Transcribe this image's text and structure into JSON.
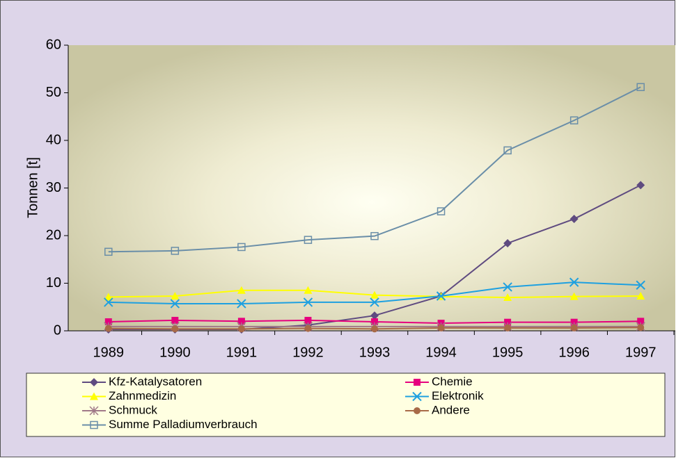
{
  "chart_data": {
    "type": "line",
    "y_label": "Tonnen [t]",
    "categories": [
      "1989",
      "1990",
      "1991",
      "1992",
      "1993",
      "1994",
      "1995",
      "1996",
      "1997"
    ],
    "series": [
      {
        "name": "Kfz-Katalysatoren",
        "color": "#5f4b80",
        "marker": "diamond",
        "values": [
          0.3,
          0.3,
          0.3,
          1.2,
          3.2,
          7.3,
          18.4,
          23.5,
          30.6
        ]
      },
      {
        "name": "Chemie",
        "color": "#e6007e",
        "marker": "square",
        "values": [
          1.9,
          2.2,
          2.0,
          2.2,
          1.9,
          1.6,
          1.8,
          1.8,
          2.0
        ]
      },
      {
        "name": "Zahnmedizin",
        "color": "#ffff00",
        "marker": "triangle",
        "values": [
          7.1,
          7.3,
          8.5,
          8.5,
          7.5,
          7.2,
          7.0,
          7.2,
          7.3
        ]
      },
      {
        "name": "Elektronik",
        "color": "#1ea0e0",
        "marker": "x",
        "values": [
          6.0,
          5.7,
          5.7,
          6.0,
          6.0,
          7.3,
          9.2,
          10.2,
          9.6
        ]
      },
      {
        "name": "Schmuck",
        "color": "#a07888",
        "marker": "asterisk",
        "values": [
          0.9,
          0.9,
          0.9,
          0.9,
          0.9,
          0.9,
          0.9,
          0.9,
          0.9
        ]
      },
      {
        "name": "Andere",
        "color": "#a86a48",
        "marker": "circle",
        "values": [
          0.5,
          0.4,
          0.4,
          0.5,
          0.4,
          0.6,
          0.6,
          0.6,
          0.7
        ]
      },
      {
        "name": "Summe Palladiumverbrauch",
        "color": "#6a8ea8",
        "marker": "open-square",
        "values": [
          16.6,
          16.8,
          17.6,
          19.1,
          19.9,
          25.1,
          37.9,
          44.2,
          51.2
        ]
      }
    ],
    "ylim": [
      0,
      60
    ],
    "yticks": [
      0,
      10,
      20,
      30,
      40,
      50,
      60
    ],
    "grid": false,
    "legend": "bottom"
  }
}
